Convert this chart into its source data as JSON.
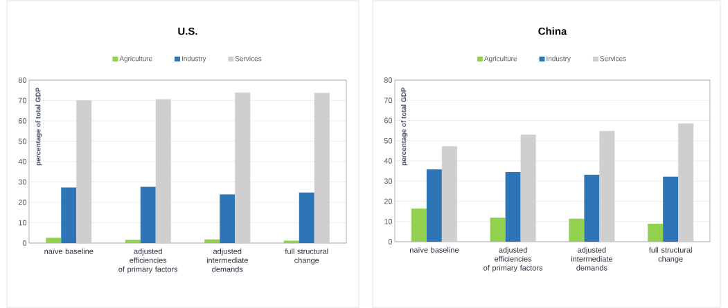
{
  "chart_data": [
    {
      "type": "bar",
      "title": "U.S.",
      "ylabel": "percentage of total GDP",
      "categories": [
        "naïve baseline",
        "adjusted efficiencies of primary factors",
        "adjusted intermediate demands",
        "full structural change"
      ],
      "series": [
        {
          "name": "Agriculture",
          "color": "#92d050",
          "values": [
            2.6,
            1.6,
            1.8,
            1.2
          ]
        },
        {
          "name": "Industry",
          "color": "#2e75b6",
          "values": [
            27.3,
            27.6,
            23.9,
            24.8
          ]
        },
        {
          "name": "Services",
          "color": "#d0cece",
          "values": [
            70.1,
            70.6,
            73.9,
            73.7
          ]
        }
      ],
      "ylim": [
        0,
        80
      ],
      "yticks": [
        0,
        10,
        20,
        30,
        40,
        50,
        60,
        70,
        80
      ],
      "grid": "y",
      "legend": "top"
    },
    {
      "type": "bar",
      "title": "China",
      "ylabel": "percentage of total GDP",
      "categories": [
        "naïve baseline",
        "adjusted efficiencies of primary factors",
        "adjusted intermediate demands",
        "full structural change"
      ],
      "series": [
        {
          "name": "Agriculture",
          "color": "#92d050",
          "values": [
            16.4,
            11.9,
            11.4,
            8.9
          ]
        },
        {
          "name": "Industry",
          "color": "#2e75b6",
          "values": [
            35.8,
            34.5,
            33.2,
            32.2
          ]
        },
        {
          "name": "Services",
          "color": "#d0cece",
          "values": [
            47.3,
            53.0,
            54.8,
            58.5
          ]
        }
      ],
      "ylim": [
        0,
        80
      ],
      "yticks": [
        0,
        10,
        20,
        30,
        40,
        50,
        60,
        70,
        80
      ],
      "grid": "y",
      "legend": "top"
    }
  ]
}
